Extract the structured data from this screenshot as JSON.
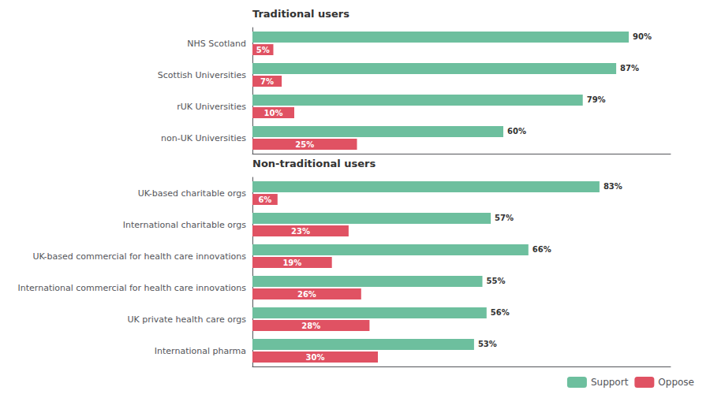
{
  "chart_data": {
    "type": "bar",
    "orientation": "horizontal",
    "categories": [
      "NHS Scotland",
      "Scottish Universities",
      "rUK Universities",
      "non-UK Universities",
      "UK-based charitable orgs",
      "International charitable orgs",
      "UK-based commercial for health care innovations",
      "International commercial for health care innovations",
      "UK private health care orgs",
      "International pharma"
    ],
    "series": [
      {
        "name": "Support",
        "color": "#6dbf9e",
        "values": [
          90,
          87,
          79,
          60,
          83,
          57,
          66,
          55,
          56,
          53
        ],
        "value_labels": [
          "90%",
          "87%",
          "79%",
          "60%",
          "83%",
          "57%",
          "66%",
          "55%",
          "56%",
          "53%"
        ]
      },
      {
        "name": "Oppose",
        "color": "#e05263",
        "values": [
          5,
          7,
          10,
          25,
          6,
          23,
          19,
          26,
          28,
          30
        ],
        "value_labels": [
          "5%",
          "7%",
          "10%",
          "25%",
          "6%",
          "23%",
          "19%",
          "26%",
          "28%",
          "30%"
        ]
      }
    ],
    "annotations": [
      {
        "text": "Traditional users",
        "category": "NHS Scotland"
      },
      {
        "text": "Non-traditional users",
        "category": "UK-based charitable orgs"
      }
    ],
    "xlim": [
      0,
      100
    ],
    "tick_labels": "y",
    "data_labels": true,
    "grid": false,
    "legend": "lower right"
  }
}
